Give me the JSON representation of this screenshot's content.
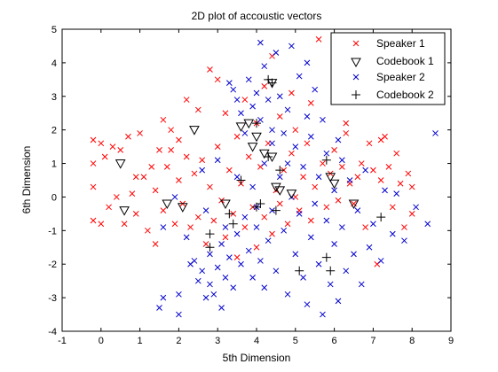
{
  "chart_data": {
    "type": "scatter",
    "title": "2D plot of accoustic vectors",
    "xlabel": "5th Dimension",
    "ylabel": "6th Dimension",
    "xlim": [
      -1,
      9
    ],
    "ylim": [
      -4,
      5
    ],
    "xticks": [
      "-1",
      "0",
      "1",
      "2",
      "3",
      "4",
      "5",
      "6",
      "7",
      "8",
      "9"
    ],
    "yticks": [
      "-4",
      "-3",
      "-2",
      "-1",
      "0",
      "1",
      "2",
      "3",
      "4",
      "5"
    ],
    "grid": false,
    "legend_position": "top-right",
    "series": [
      {
        "name": "Speaker 1",
        "marker": "x",
        "color": "#ff0000",
        "points": [
          [
            -0.2,
            1.7
          ],
          [
            -0.2,
            1.0
          ],
          [
            -0.2,
            0.3
          ],
          [
            -0.2,
            -0.7
          ],
          [
            0.0,
            1.6
          ],
          [
            0.0,
            -0.8
          ],
          [
            0.1,
            1.2
          ],
          [
            0.2,
            -0.3
          ],
          [
            0.3,
            1.5
          ],
          [
            0.4,
            0.0
          ],
          [
            0.5,
            1.4
          ],
          [
            0.6,
            -0.8
          ],
          [
            0.7,
            1.8
          ],
          [
            0.8,
            0.1
          ],
          [
            0.9,
            -0.5
          ],
          [
            1.0,
            1.9
          ],
          [
            1.1,
            0.6
          ],
          [
            1.2,
            -1.0
          ],
          [
            1.3,
            0.9
          ],
          [
            1.4,
            0.2
          ],
          [
            1.4,
            -1.4
          ],
          [
            1.5,
            1.4
          ],
          [
            1.6,
            2.3
          ],
          [
            1.6,
            -0.4
          ],
          [
            1.7,
            0.9
          ],
          [
            1.8,
            1.4
          ],
          [
            1.9,
            -0.8
          ],
          [
            2.0,
            0.5
          ],
          [
            2.0,
            1.7
          ],
          [
            2.1,
            -0.2
          ],
          [
            2.2,
            1.2
          ],
          [
            2.3,
            -0.9
          ],
          [
            2.4,
            0.7
          ],
          [
            2.5,
            2.6
          ],
          [
            2.5,
            -0.6
          ],
          [
            2.6,
            1.1
          ],
          [
            2.7,
            -1.4
          ],
          [
            2.8,
            3.8
          ],
          [
            2.8,
            0.3
          ],
          [
            2.9,
            -0.7
          ],
          [
            3.0,
            1.5
          ],
          [
            3.1,
            -0.1
          ],
          [
            3.2,
            2.5
          ],
          [
            3.2,
            -1.2
          ],
          [
            3.3,
            0.8
          ],
          [
            3.4,
            -0.5
          ],
          [
            3.5,
            1.8
          ],
          [
            3.5,
            -1.8
          ],
          [
            3.6,
            0.4
          ],
          [
            3.7,
            2.9
          ],
          [
            3.7,
            -0.9
          ],
          [
            3.8,
            1.2
          ],
          [
            3.9,
            -0.3
          ],
          [
            4.0,
            2.2
          ],
          [
            4.0,
            -1.5
          ],
          [
            4.1,
            0.9
          ],
          [
            4.2,
            3.3
          ],
          [
            4.2,
            -0.6
          ],
          [
            4.3,
            1.6
          ],
          [
            4.4,
            4.2
          ],
          [
            4.4,
            -1.1
          ],
          [
            4.5,
            0.2
          ],
          [
            4.6,
            2.4
          ],
          [
            4.6,
            -0.2
          ],
          [
            4.7,
            0.8
          ],
          [
            4.8,
            -0.8
          ],
          [
            4.9,
            1.3
          ],
          [
            5.0,
            0.0
          ],
          [
            5.0,
            2.0
          ],
          [
            5.1,
            -0.4
          ],
          [
            5.2,
            0.6
          ],
          [
            5.3,
            1.6
          ],
          [
            5.4,
            -0.7
          ],
          [
            5.5,
            0.3
          ],
          [
            5.6,
            4.7
          ],
          [
            5.7,
            1.0
          ],
          [
            5.8,
            -0.3
          ],
          [
            5.9,
            0.7
          ],
          [
            6.0,
            1.4
          ],
          [
            6.1,
            -0.1
          ],
          [
            6.2,
            0.9
          ],
          [
            6.3,
            1.9
          ],
          [
            6.4,
            0.4
          ],
          [
            6.5,
            -0.2
          ],
          [
            6.6,
            0.6
          ],
          [
            6.7,
            1.0
          ],
          [
            6.8,
            -0.9
          ],
          [
            6.9,
            1.6
          ],
          [
            7.0,
            0.8
          ],
          [
            7.1,
            -2.0
          ],
          [
            7.2,
            0.5
          ],
          [
            7.3,
            1.8
          ],
          [
            7.4,
            0.9
          ],
          [
            7.5,
            -0.3
          ],
          [
            7.6,
            1.3
          ],
          [
            7.7,
            0.4
          ],
          [
            7.8,
            -0.9
          ],
          [
            7.9,
            0.7
          ],
          [
            8.0,
            0.3
          ],
          [
            8.0,
            -0.5
          ],
          [
            7.2,
            1.7
          ],
          [
            6.3,
            2.2
          ],
          [
            5.4,
            2.8
          ],
          [
            4.9,
            3.1
          ],
          [
            3.0,
            3.5
          ],
          [
            2.2,
            2.9
          ],
          [
            1.8,
            2.0
          ],
          [
            0.9,
            0.6
          ]
        ]
      },
      {
        "name": "Codebook 1",
        "marker": "triangle-down",
        "color": "#000000",
        "points": [
          [
            0.5,
            1.0
          ],
          [
            0.6,
            -0.4
          ],
          [
            1.7,
            -0.2
          ],
          [
            2.1,
            -0.3
          ],
          [
            2.4,
            2.0
          ],
          [
            3.2,
            -0.2
          ],
          [
            3.6,
            2.1
          ],
          [
            3.8,
            2.2
          ],
          [
            3.9,
            1.5
          ],
          [
            4.0,
            1.8
          ],
          [
            4.2,
            1.3
          ],
          [
            4.4,
            1.2
          ],
          [
            4.4,
            3.4
          ],
          [
            4.5,
            0.3
          ],
          [
            4.6,
            0.2
          ],
          [
            4.9,
            0.1
          ],
          [
            5.9,
            0.6
          ],
          [
            6.0,
            0.4
          ],
          [
            6.5,
            -0.2
          ]
        ]
      },
      {
        "name": "Speaker 2",
        "marker": "x",
        "color": "#0000cc",
        "points": [
          [
            1.5,
            -3.3
          ],
          [
            1.6,
            -3.0
          ],
          [
            2.0,
            -2.9
          ],
          [
            2.0,
            -3.5
          ],
          [
            2.3,
            -2.0
          ],
          [
            2.4,
            -1.9
          ],
          [
            2.5,
            -2.5
          ],
          [
            2.6,
            -2.2
          ],
          [
            2.7,
            -3.0
          ],
          [
            2.8,
            -2.6
          ],
          [
            2.8,
            -1.7
          ],
          [
            2.9,
            -2.9
          ],
          [
            3.0,
            -2.1
          ],
          [
            3.1,
            -1.4
          ],
          [
            3.1,
            -3.3
          ],
          [
            3.2,
            -2.4
          ],
          [
            3.2,
            -0.9
          ],
          [
            3.3,
            3.4
          ],
          [
            3.3,
            -1.8
          ],
          [
            3.4,
            3.2
          ],
          [
            3.4,
            -2.7
          ],
          [
            3.5,
            2.9
          ],
          [
            3.5,
            -1.1
          ],
          [
            3.6,
            2.5
          ],
          [
            3.6,
            -2.0
          ],
          [
            3.7,
            1.9
          ],
          [
            3.7,
            -0.6
          ],
          [
            3.8,
            3.5
          ],
          [
            3.8,
            -1.6
          ],
          [
            3.9,
            2.7
          ],
          [
            3.9,
            -2.4
          ],
          [
            4.0,
            3.1
          ],
          [
            4.0,
            -0.9
          ],
          [
            4.1,
            4.6
          ],
          [
            4.1,
            2.3
          ],
          [
            4.1,
            -1.9
          ],
          [
            4.2,
            3.9
          ],
          [
            4.2,
            1.0
          ],
          [
            4.2,
            -2.7
          ],
          [
            4.3,
            2.9
          ],
          [
            4.3,
            -1.3
          ],
          [
            4.4,
            1.6
          ],
          [
            4.4,
            -0.4
          ],
          [
            4.5,
            4.3
          ],
          [
            4.5,
            -2.2
          ],
          [
            4.6,
            3.0
          ],
          [
            4.6,
            0.6
          ],
          [
            4.7,
            1.9
          ],
          [
            4.7,
            -1.0
          ],
          [
            4.8,
            2.6
          ],
          [
            4.8,
            -2.9
          ],
          [
            4.9,
            4.5
          ],
          [
            4.9,
            0.0
          ],
          [
            5.0,
            1.5
          ],
          [
            5.0,
            -1.7
          ],
          [
            5.1,
            3.6
          ],
          [
            5.1,
            -0.5
          ],
          [
            5.2,
            0.9
          ],
          [
            5.2,
            -2.4
          ],
          [
            5.3,
            4.0
          ],
          [
            5.3,
            -3.2
          ],
          [
            5.4,
            1.8
          ],
          [
            5.4,
            -1.2
          ],
          [
            5.5,
            3.2
          ],
          [
            5.5,
            -0.2
          ],
          [
            5.6,
            0.6
          ],
          [
            5.6,
            -2.0
          ],
          [
            5.7,
            2.3
          ],
          [
            5.7,
            -3.5
          ],
          [
            5.8,
            -0.7
          ],
          [
            5.8,
            1.3
          ],
          [
            5.9,
            -2.6
          ],
          [
            6.0,
            0.2
          ],
          [
            6.0,
            -1.4
          ],
          [
            6.1,
            -3.1
          ],
          [
            6.2,
            -0.9
          ],
          [
            6.2,
            1.1
          ],
          [
            6.3,
            -2.2
          ],
          [
            6.4,
            0.5
          ],
          [
            6.5,
            -1.7
          ],
          [
            6.6,
            -0.4
          ],
          [
            6.7,
            -2.6
          ],
          [
            6.8,
            0.8
          ],
          [
            6.9,
            -1.5
          ],
          [
            7.0,
            -0.8
          ],
          [
            7.2,
            -1.9
          ],
          [
            7.3,
            0.2
          ],
          [
            7.5,
            -1.1
          ],
          [
            7.6,
            0.1
          ],
          [
            7.8,
            -1.3
          ],
          [
            8.1,
            -0.3
          ],
          [
            8.4,
            -0.8
          ],
          [
            8.6,
            1.9
          ],
          [
            3.0,
            1.1
          ],
          [
            2.7,
            -0.4
          ],
          [
            2.2,
            -1.2
          ],
          [
            1.9,
            0.0
          ],
          [
            1.6,
            -0.9
          ],
          [
            2.6,
            0.8
          ],
          [
            3.9,
            0.3
          ],
          [
            5.3,
            2.4
          ],
          [
            6.1,
            1.7
          ],
          [
            4.4,
            2.0
          ],
          [
            3.5,
            0.6
          ],
          [
            4.0,
            -0.3
          ],
          [
            4.8,
            1.0
          ]
        ]
      },
      {
        "name": "Codebook 2",
        "marker": "plus",
        "color": "#000000",
        "points": [
          [
            2.8,
            -1.1
          ],
          [
            2.8,
            -1.5
          ],
          [
            3.3,
            -0.5
          ],
          [
            3.4,
            -0.8
          ],
          [
            4.0,
            2.2
          ],
          [
            4.0,
            -0.3
          ],
          [
            4.1,
            -0.2
          ],
          [
            4.3,
            1.2
          ],
          [
            4.3,
            3.5
          ],
          [
            4.4,
            3.4
          ],
          [
            4.5,
            -0.4
          ],
          [
            5.1,
            -2.2
          ],
          [
            5.8,
            1.1
          ],
          [
            5.8,
            -1.8
          ],
          [
            5.9,
            -2.2
          ],
          [
            7.2,
            -0.6
          ],
          [
            3.6,
            0.5
          ],
          [
            4.6,
            0.8
          ]
        ]
      }
    ]
  }
}
